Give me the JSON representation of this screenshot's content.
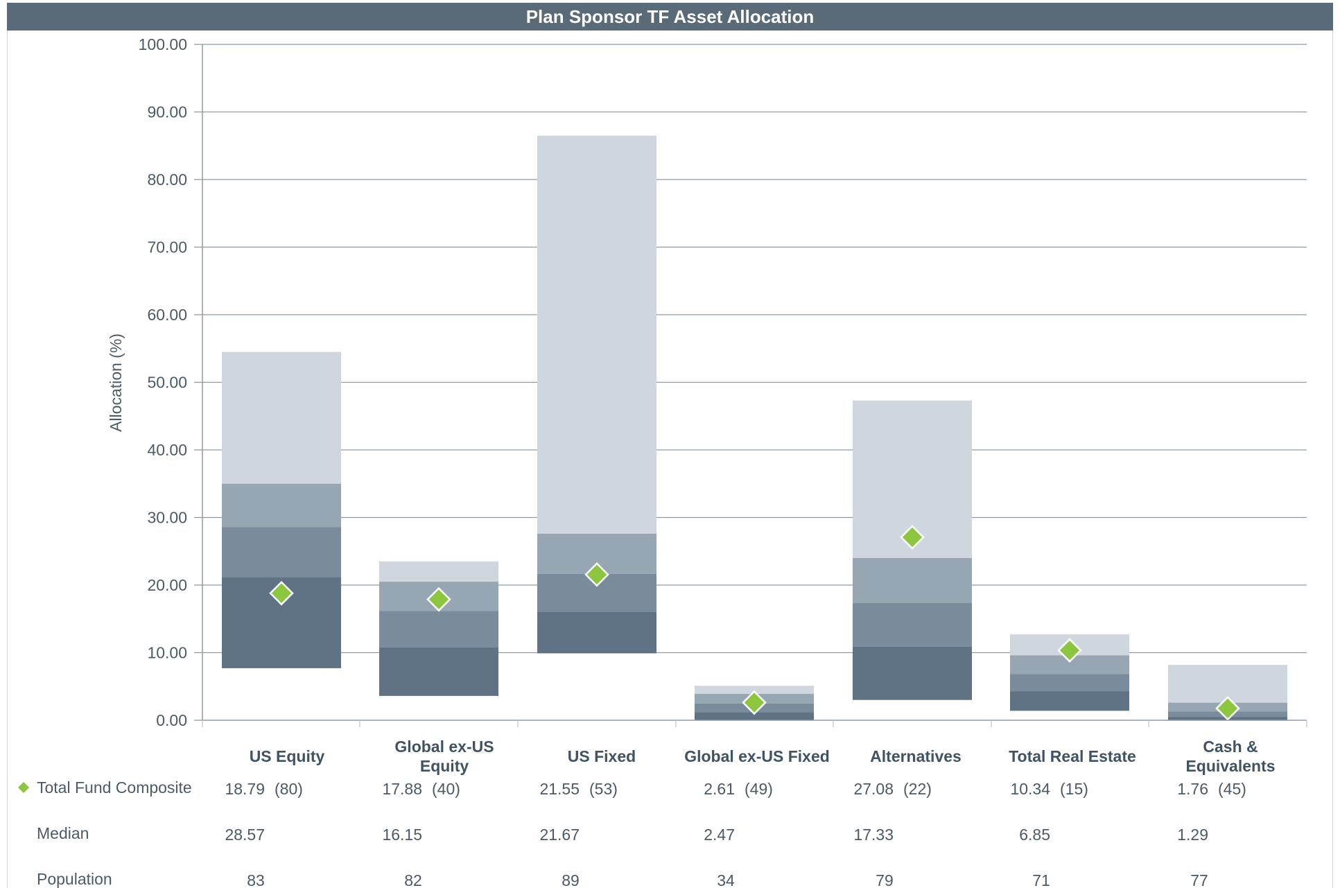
{
  "chart_data": {
    "type": "floating-bar",
    "title": "Plan Sponsor TF Asset Allocation",
    "ylabel": "Allocation (%)",
    "ylim": [
      0,
      100
    ],
    "yticks": [
      "0.00",
      "10.00",
      "20.00",
      "30.00",
      "40.00",
      "50.00",
      "60.00",
      "70.00",
      "80.00",
      "90.00",
      "100.00"
    ],
    "grid": true,
    "categories": [
      {
        "label_lines": [
          "US Equity"
        ],
        "p5": 7.7,
        "p25": 21.2,
        "median": 28.57,
        "p75": 35.0,
        "p95": 54.5,
        "composite": 18.79,
        "composite_label": "18.79",
        "rank_label": "(80)",
        "median_label": "28.57",
        "population": "83"
      },
      {
        "label_lines": [
          "Global ex-US",
          "Equity"
        ],
        "p5": 3.6,
        "p25": 10.8,
        "median": 16.15,
        "p75": 20.5,
        "p95": 23.5,
        "composite": 17.88,
        "composite_label": "17.88",
        "rank_label": "(40)",
        "median_label": "16.15",
        "population": "82"
      },
      {
        "label_lines": [
          "US Fixed"
        ],
        "p5": 9.9,
        "p25": 16.0,
        "median": 21.67,
        "p75": 27.6,
        "p95": 86.5,
        "composite": 21.55,
        "composite_label": "21.55",
        "rank_label": "(53)",
        "median_label": "21.67",
        "population": "89"
      },
      {
        "label_lines": [
          "Global ex-US Fixed"
        ],
        "p5": 0.0,
        "p25": 1.2,
        "median": 2.47,
        "p75": 3.9,
        "p95": 5.1,
        "composite": 2.61,
        "composite_label": "2.61",
        "rank_label": "(49)",
        "median_label": "2.47",
        "population": "34"
      },
      {
        "label_lines": [
          "Alternatives"
        ],
        "p5": 3.0,
        "p25": 10.9,
        "median": 17.33,
        "p75": 24.0,
        "p95": 47.3,
        "composite": 27.08,
        "composite_label": "27.08",
        "rank_label": "(22)",
        "median_label": "17.33",
        "population": "79"
      },
      {
        "label_lines": [
          "Total Real Estate"
        ],
        "p5": 1.4,
        "p25": 4.3,
        "median": 6.85,
        "p75": 9.6,
        "p95": 12.7,
        "composite": 10.34,
        "composite_label": "10.34",
        "rank_label": "(15)",
        "median_label": "6.85",
        "population": "71"
      },
      {
        "label_lines": [
          "Cash &",
          "Equivalents"
        ],
        "p5": 0.0,
        "p25": 0.5,
        "median": 1.29,
        "p75": 2.6,
        "p95": 8.2,
        "composite": 1.76,
        "composite_label": "1.76",
        "rank_label": "(45)",
        "median_label": "1.29",
        "population": "77"
      }
    ],
    "bands": [
      {
        "name": "95th-75th",
        "color": "#cfd6de"
      },
      {
        "name": "75th-median",
        "color": "#97a6b3"
      },
      {
        "name": "median-25th",
        "color": "#7a8c9c"
      },
      {
        "name": "25th-5th",
        "color": "#5f7385"
      }
    ],
    "marker": {
      "name": "Total Fund Composite",
      "color": "#8cc63f",
      "shape": "diamond"
    },
    "table_rows": {
      "composite": "Total Fund Composite",
      "median": "Median",
      "population": "Population"
    },
    "colors": {
      "header": "#596a79",
      "grid": "#8d9aa6",
      "text": "#4a5a68"
    }
  }
}
